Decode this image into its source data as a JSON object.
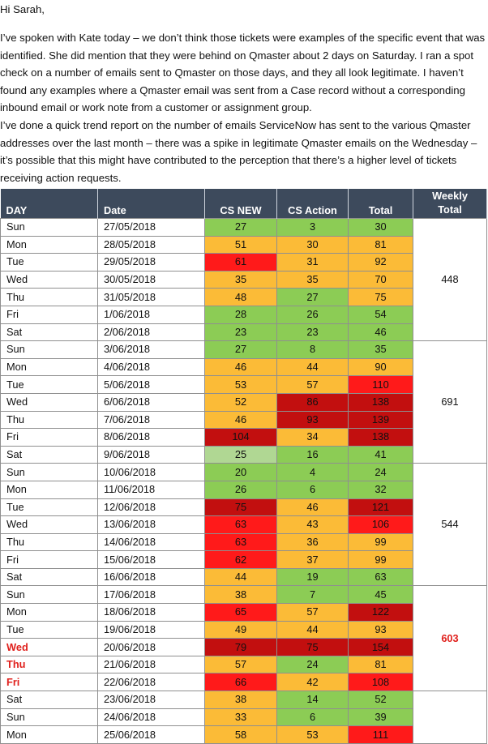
{
  "email": {
    "greeting": "Hi Sarah,",
    "paragraph1": "I’ve spoken with Kate today – we don’t think those tickets were examples of the specific event that was identified.  She did mention that they were behind on Qmaster about 2 days on Saturday.  I ran a spot check on a number of emails sent to Qmaster on those days, and they all look legitimate.  I haven’t found any examples where a Qmaster email was sent from a Case record without a corresponding inbound email or work note from a customer or assignment group.",
    "paragraph2": " I’ve done a quick trend report on the number of emails ServiceNow has sent to the various Qmaster addresses over the last month – there was a spike in legitimate Qmaster emails on the Wednesday – it’s possible that this might have contributed to the perception that there’s a higher level of tickets receiving action requests."
  },
  "table": {
    "headers": {
      "day": "DAY",
      "date": "Date",
      "cs_new": "CS NEW",
      "cs_action": "CS Action",
      "total": "Total",
      "weekly_line1": "Weekly",
      "weekly_line2": "Total"
    },
    "colors": {
      "green": "#8ccc55",
      "light_green": "#b0d793",
      "orange": "#fbbb37",
      "red": "#ff1a1a",
      "dark_red": "#c20f0f",
      "header_bg": "#3d4a5c",
      "highlight_text": "#e0201c"
    },
    "rows": [
      {
        "day": "Sun",
        "date": "27/05/2018",
        "cs_new": 27,
        "cs_new_color": "green",
        "cs_action": 3,
        "cs_action_color": "green",
        "total": 30,
        "total_color": "green"
      },
      {
        "day": "Mon",
        "date": "28/05/2018",
        "cs_new": 51,
        "cs_new_color": "orange",
        "cs_action": 30,
        "cs_action_color": "orange",
        "total": 81,
        "total_color": "orange"
      },
      {
        "day": "Tue",
        "date": "29/05/2018",
        "cs_new": 61,
        "cs_new_color": "red",
        "cs_action": 31,
        "cs_action_color": "orange",
        "total": 92,
        "total_color": "orange"
      },
      {
        "day": "Wed",
        "date": "30/05/2018",
        "cs_new": 35,
        "cs_new_color": "orange",
        "cs_action": 35,
        "cs_action_color": "orange",
        "total": 70,
        "total_color": "orange"
      },
      {
        "day": "Thu",
        "date": "31/05/2018",
        "cs_new": 48,
        "cs_new_color": "orange",
        "cs_action": 27,
        "cs_action_color": "green",
        "total": 75,
        "total_color": "orange"
      },
      {
        "day": "Fri",
        "date": "1/06/2018",
        "cs_new": 28,
        "cs_new_color": "green",
        "cs_action": 26,
        "cs_action_color": "green",
        "total": 54,
        "total_color": "green"
      },
      {
        "day": "Sat",
        "date": "2/06/2018",
        "cs_new": 23,
        "cs_new_color": "green",
        "cs_action": 23,
        "cs_action_color": "green",
        "total": 46,
        "total_color": "green"
      },
      {
        "day": "Sun",
        "date": "3/06/2018",
        "cs_new": 27,
        "cs_new_color": "green",
        "cs_action": 8,
        "cs_action_color": "green",
        "total": 35,
        "total_color": "green"
      },
      {
        "day": "Mon",
        "date": "4/06/2018",
        "cs_new": 46,
        "cs_new_color": "orange",
        "cs_action": 44,
        "cs_action_color": "orange",
        "total": 90,
        "total_color": "orange"
      },
      {
        "day": "Tue",
        "date": "5/06/2018",
        "cs_new": 53,
        "cs_new_color": "orange",
        "cs_action": 57,
        "cs_action_color": "orange",
        "total": 110,
        "total_color": "red"
      },
      {
        "day": "Wed",
        "date": "6/06/2018",
        "cs_new": 52,
        "cs_new_color": "orange",
        "cs_action": 86,
        "cs_action_color": "dark_red",
        "total": 138,
        "total_color": "dark_red"
      },
      {
        "day": "Thu",
        "date": "7/06/2018",
        "cs_new": 46,
        "cs_new_color": "orange",
        "cs_action": 93,
        "cs_action_color": "dark_red",
        "total": 139,
        "total_color": "dark_red"
      },
      {
        "day": "Fri",
        "date": "8/06/2018",
        "cs_new": 104,
        "cs_new_color": "dark_red",
        "cs_action": 34,
        "cs_action_color": "orange",
        "total": 138,
        "total_color": "dark_red"
      },
      {
        "day": "Sat",
        "date": "9/06/2018",
        "cs_new": 25,
        "cs_new_color": "light_green",
        "cs_action": 16,
        "cs_action_color": "green",
        "total": 41,
        "total_color": "green"
      },
      {
        "day": "Sun",
        "date": "10/06/2018",
        "cs_new": 20,
        "cs_new_color": "green",
        "cs_action": 4,
        "cs_action_color": "green",
        "total": 24,
        "total_color": "green"
      },
      {
        "day": "Mon",
        "date": "11/06/2018",
        "cs_new": 26,
        "cs_new_color": "green",
        "cs_action": 6,
        "cs_action_color": "green",
        "total": 32,
        "total_color": "green"
      },
      {
        "day": "Tue",
        "date": "12/06/2018",
        "cs_new": 75,
        "cs_new_color": "dark_red",
        "cs_action": 46,
        "cs_action_color": "orange",
        "total": 121,
        "total_color": "dark_red"
      },
      {
        "day": "Wed",
        "date": "13/06/2018",
        "cs_new": 63,
        "cs_new_color": "red",
        "cs_action": 43,
        "cs_action_color": "orange",
        "total": 106,
        "total_color": "red"
      },
      {
        "day": "Thu",
        "date": "14/06/2018",
        "cs_new": 63,
        "cs_new_color": "red",
        "cs_action": 36,
        "cs_action_color": "orange",
        "total": 99,
        "total_color": "orange"
      },
      {
        "day": "Fri",
        "date": "15/06/2018",
        "cs_new": 62,
        "cs_new_color": "red",
        "cs_action": 37,
        "cs_action_color": "orange",
        "total": 99,
        "total_color": "orange"
      },
      {
        "day": "Sat",
        "date": "16/06/2018",
        "cs_new": 44,
        "cs_new_color": "orange",
        "cs_action": 19,
        "cs_action_color": "green",
        "total": 63,
        "total_color": "green"
      },
      {
        "day": "Sun",
        "date": "17/06/2018",
        "cs_new": 38,
        "cs_new_color": "orange",
        "cs_action": 7,
        "cs_action_color": "green",
        "total": 45,
        "total_color": "green"
      },
      {
        "day": "Mon",
        "date": "18/06/2018",
        "cs_new": 65,
        "cs_new_color": "red",
        "cs_action": 57,
        "cs_action_color": "orange",
        "total": 122,
        "total_color": "dark_red"
      },
      {
        "day": "Tue",
        "date": "19/06/2018",
        "cs_new": 49,
        "cs_new_color": "orange",
        "cs_action": 44,
        "cs_action_color": "orange",
        "total": 93,
        "total_color": "orange"
      },
      {
        "day": "Wed",
        "date": "20/06/2018",
        "cs_new": 79,
        "cs_new_color": "dark_red",
        "cs_action": 75,
        "cs_action_color": "dark_red",
        "total": 154,
        "total_color": "dark_red",
        "highlight": true
      },
      {
        "day": "Thu",
        "date": "21/06/2018",
        "cs_new": 57,
        "cs_new_color": "orange",
        "cs_action": 24,
        "cs_action_color": "green",
        "total": 81,
        "total_color": "orange",
        "highlight": true
      },
      {
        "day": "Fri",
        "date": "22/06/2018",
        "cs_new": 66,
        "cs_new_color": "red",
        "cs_action": 42,
        "cs_action_color": "orange",
        "total": 108,
        "total_color": "red",
        "highlight": true
      },
      {
        "day": "Sat",
        "date": "23/06/2018",
        "cs_new": 38,
        "cs_new_color": "orange",
        "cs_action": 14,
        "cs_action_color": "green",
        "total": 52,
        "total_color": "green"
      },
      {
        "day": "Sun",
        "date": "24/06/2018",
        "cs_new": 33,
        "cs_new_color": "orange",
        "cs_action": 6,
        "cs_action_color": "green",
        "total": 39,
        "total_color": "green"
      },
      {
        "day": "Mon",
        "date": "25/06/2018",
        "cs_new": 58,
        "cs_new_color": "orange",
        "cs_action": 53,
        "cs_action_color": "orange",
        "total": 111,
        "total_color": "red"
      }
    ],
    "weekly": [
      {
        "start": 0,
        "span": 7,
        "total": "448"
      },
      {
        "start": 7,
        "span": 7,
        "total": "691"
      },
      {
        "start": 14,
        "span": 7,
        "total": "544"
      },
      {
        "start": 21,
        "span": 6,
        "total": "603",
        "highlight": true
      },
      {
        "start": 27,
        "span": 3,
        "total": ""
      }
    ]
  }
}
